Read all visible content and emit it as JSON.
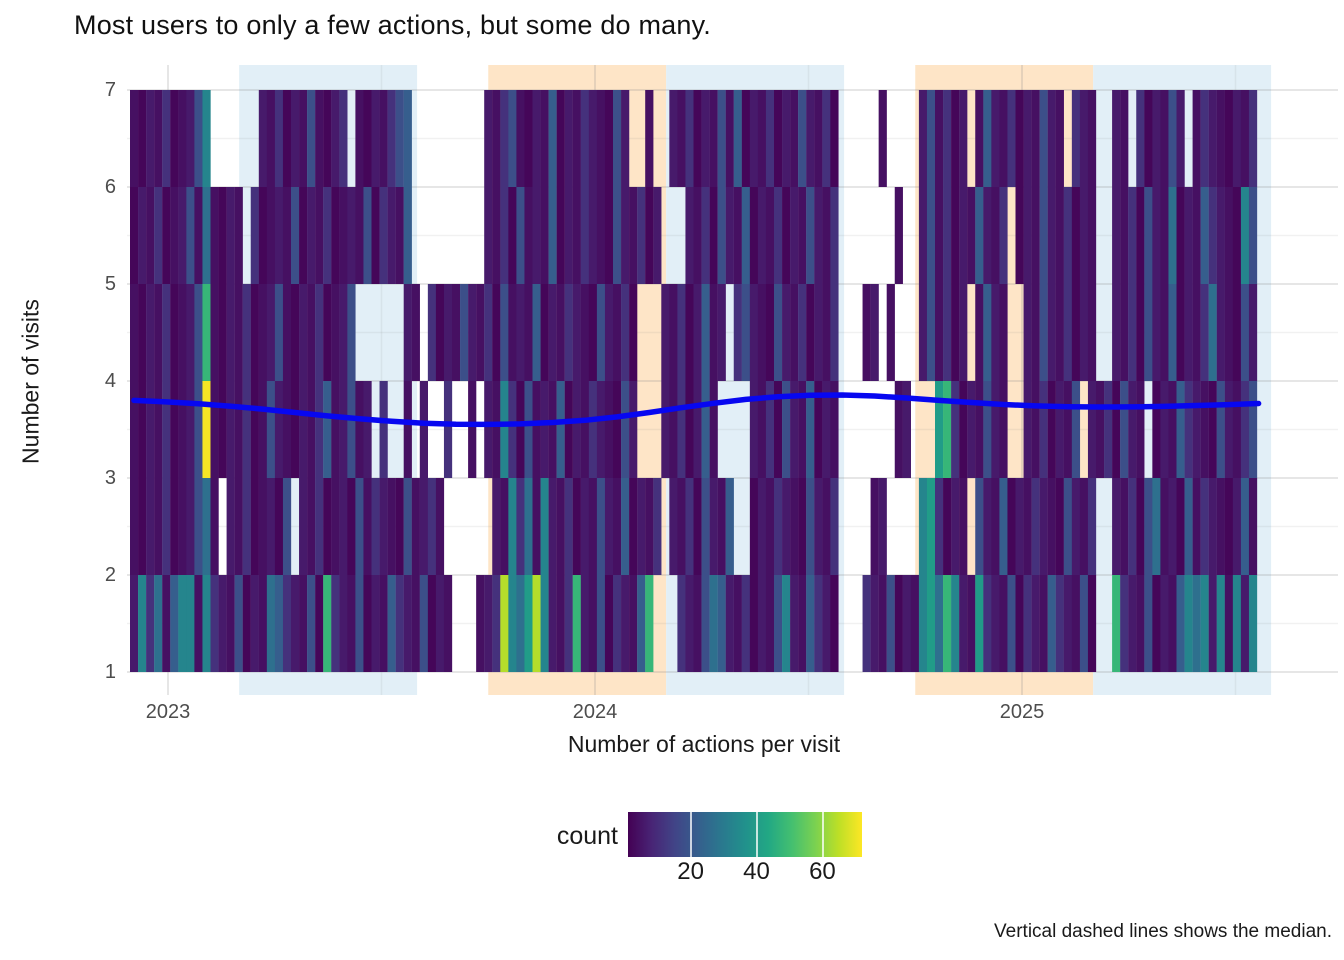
{
  "title": "Most users to only a few actions, but some do many.",
  "caption": "Vertical dashed lines shows the median.",
  "axes": {
    "x_label": "Number of actions per visit",
    "y_label": "Number of visits",
    "x_tick_labels": [
      "2023",
      "2024",
      "2025"
    ],
    "x_tick_years": [
      2023,
      2024,
      2025
    ],
    "y_tick_labels": [
      "1",
      "2",
      "3",
      "4",
      "5",
      "6",
      "7"
    ],
    "y_range": [
      1,
      7
    ],
    "grid": "major and minor, light gray on white"
  },
  "legend": {
    "label": "count",
    "ticks": [
      20,
      40,
      60
    ],
    "domain": [
      1,
      72
    ],
    "palette": "viridis",
    "position": "bottom"
  },
  "colors": {
    "band_blue": "#e2eff7",
    "band_orange": "#fee5c7",
    "smooth_line": "#0707f0",
    "gridline": "#8c8c8c",
    "tick_text": "#4d4d4d",
    "viridis_min": "#440154",
    "viridis_max": "#fde725"
  },
  "chart_data": {
    "type": "heatmap",
    "title": "Most users to only a few actions, but some do many.",
    "xlabel": "Number of actions per visit",
    "ylabel": "Number of visits",
    "x_unit": "week",
    "x_start_date": "2022-11-28",
    "n_cols": 140,
    "scale_domain": [
      1,
      72
    ],
    "value_key": {
      ".": null,
      "a": 2,
      "b": 4,
      "c": 6,
      "d": 8,
      "e": 11,
      "f": 14,
      "g": 18,
      "h": 22,
      "i": 27,
      "j": 33,
      "k": 40,
      "l": 48,
      "m": 56,
      "n": 64,
      "o": 71
    },
    "rows": [
      {
        "visit_band": "6-7",
        "top_value": 7,
        "pattern": "bacbeabcgj......cbeacbgbace.bacbegh.........cbegbacbhacbecbagc..b..cbeacbgbhacbeacbgcbea.....b....cgbeac.bhcbeacbgcb.ecb..cb.eacbgc.becbacbe"
      },
      {
        "visit_band": "5-6",
        "top_value": 6,
        "pattern": "acbeabcgbibacb.eabcbgacbeabcbgaecbh.........cbeagbcbhacbecbagcbeac...cbeagcbhacbeacbgcbe.......b..cgbeacbhcbe.acbgcbeacb..cbeagcbiacbhecbajg"
      },
      {
        "visit_band": "4-5",
        "top_value": 5,
        "pattern": "bacbeabcglbacbeabcgbacbeabcg......cb.eacbgcbeagbcbhacbecbagcbea...cbeachbc.egcbagcbeacbe...bc.b...cgbeac.bhcb..cbgcbeacb..cbeagcbhacbeicbagc"
      },
      {
        "visit_band": "3-4",
        "top_value": 4,
        "pattern": "bacbeabcgobacbeabgcbacbehbcgbc.e..b.c..e..b.cbjeagbcbhacbecbagc...cbeachb....cbeagcbhacb.......bc...kleacbgcb..cbeacbg.cbeagcb.acbhecbagcbeg"
      },
      {
        "visit_band": "2-3",
        "top_value": 3,
        "pattern": "bacbeabcgib.cbeabcag.cbeabcagbecbagbceb......cbjeibjcbeacbgcbhacbe.cbeagcbh..acbecbagcbe....bc....jkeacb.gcbhacbecbagcbe..cbeagibcahbecbachb"
      },
      {
        "visit_band": "1-2",
        "top_value": 2,
        "pattern": "cjeibhjjbjecbgacbihecbgalecbgacbhecbgacb...bcenjiknjcbelcbgaecbhl...ecbgihcbeacbgjcbheca...ecbgacbjkiljcbkecbgaecbhecbga..lecbgacbhjijcjbjcj"
      }
    ],
    "bands": [
      {
        "color": "blue",
        "from": "2023-03-01",
        "to": "2023-08-01"
      },
      {
        "color": "orange",
        "from": "2023-10-01",
        "to": "2024-03-01"
      },
      {
        "color": "blue",
        "from": "2024-03-01",
        "to": "2024-08-01"
      },
      {
        "color": "orange",
        "from": "2024-10-01",
        "to": "2025-03-01"
      },
      {
        "color": "blue",
        "from": "2025-03-01",
        "to": "2025-08-01"
      }
    ],
    "smooth_line": {
      "description": "blue loess trend of mean number of visits",
      "points": [
        [
          0,
          3.8
        ],
        [
          4,
          3.785
        ],
        [
          8,
          3.765
        ],
        [
          12,
          3.74
        ],
        [
          16,
          3.71
        ],
        [
          20,
          3.675
        ],
        [
          24,
          3.64
        ],
        [
          28,
          3.61
        ],
        [
          32,
          3.585
        ],
        [
          36,
          3.565
        ],
        [
          40,
          3.555
        ],
        [
          44,
          3.553
        ],
        [
          48,
          3.558
        ],
        [
          52,
          3.572
        ],
        [
          56,
          3.595
        ],
        [
          60,
          3.63
        ],
        [
          64,
          3.675
        ],
        [
          68,
          3.725
        ],
        [
          72,
          3.77
        ],
        [
          76,
          3.81
        ],
        [
          80,
          3.838
        ],
        [
          84,
          3.853
        ],
        [
          88,
          3.856
        ],
        [
          92,
          3.845
        ],
        [
          96,
          3.825
        ],
        [
          100,
          3.8
        ],
        [
          104,
          3.778
        ],
        [
          108,
          3.758
        ],
        [
          112,
          3.743
        ],
        [
          116,
          3.735
        ],
        [
          120,
          3.732
        ],
        [
          124,
          3.733
        ],
        [
          128,
          3.738
        ],
        [
          132,
          3.747
        ],
        [
          136,
          3.757
        ],
        [
          139.7,
          3.768
        ]
      ]
    }
  }
}
